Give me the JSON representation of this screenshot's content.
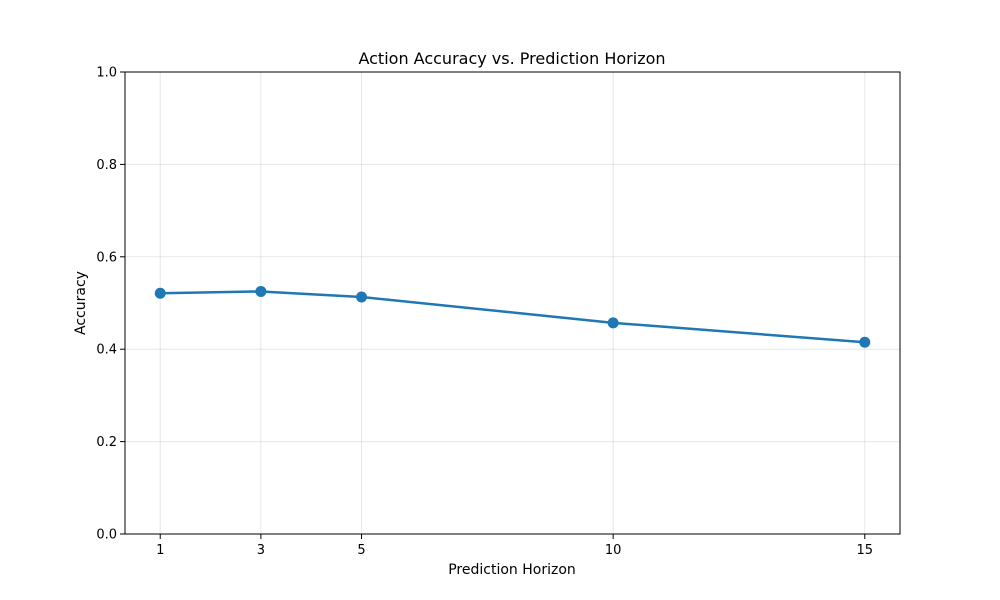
{
  "chart_data": {
    "type": "line",
    "title": "Action Accuracy vs. Prediction Horizon",
    "xlabel": "Prediction Horizon",
    "ylabel": "Accuracy",
    "x": [
      1,
      3,
      5,
      10,
      15
    ],
    "xticks": [
      "1",
      "3",
      "5",
      "10",
      "15"
    ],
    "xlim": [
      0.3,
      15.7
    ],
    "ylim": [
      0,
      1
    ],
    "yticks": [
      "0.0",
      "0.2",
      "0.4",
      "0.6",
      "0.8",
      "1.0"
    ],
    "series": [
      {
        "values": [
          0.521,
          0.525,
          0.513,
          0.457,
          0.415
        ],
        "color": "#1f77b4"
      }
    ],
    "grid": true,
    "legend": "none"
  }
}
